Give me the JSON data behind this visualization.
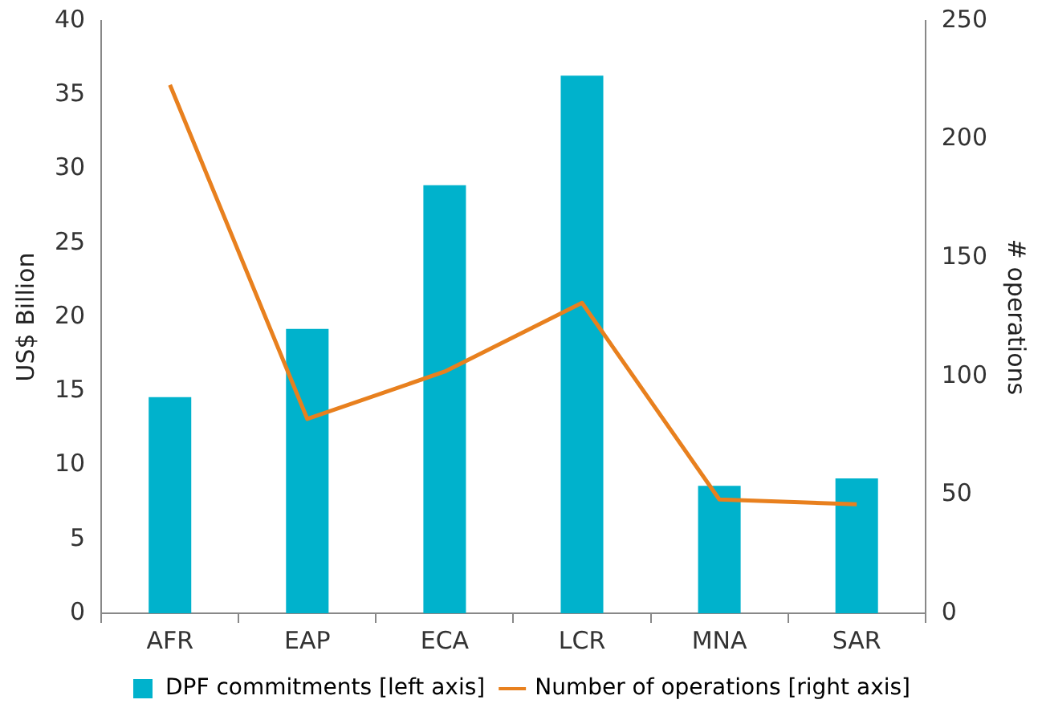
{
  "chart_data": {
    "type": "bar",
    "ylabel": "US$ Billion",
    "y2label": "# operations",
    "categories": [
      "AFR",
      "EAP",
      "ECA",
      "LCR",
      "MNA",
      "SAR"
    ],
    "series": [
      {
        "name": "DPF commitments [left axis]",
        "color": "#00b2cc",
        "values": [
          14.6,
          19.2,
          28.9,
          36.3,
          8.6,
          9.1
        ]
      },
      {
        "name": "Number of operations [right axis]",
        "type": "line",
        "axis": "y2",
        "color": "#e8801e",
        "values": [
          223,
          82,
          102,
          131,
          48,
          46
        ]
      }
    ],
    "ylim": [
      0,
      40
    ],
    "yticks": [
      0,
      5,
      10,
      15,
      20,
      25,
      30,
      35,
      40
    ],
    "y2lim": [
      0,
      250
    ],
    "y2ticks": [
      0,
      50,
      100,
      150,
      200,
      250
    ],
    "grid": false,
    "legend": "bottom",
    "marker": "none"
  }
}
